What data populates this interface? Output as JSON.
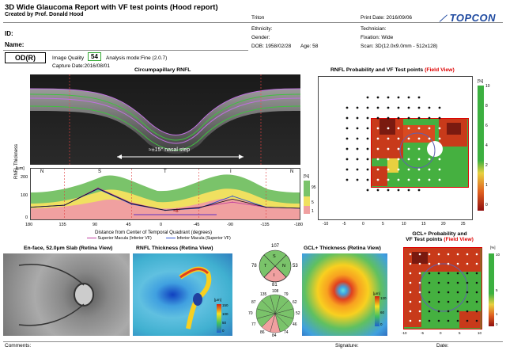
{
  "header": {
    "title": "3D Wide Glaucoma Report with VF test points (Hood report)",
    "created_by": "Created by Prof. Donald Hood",
    "device": "Triton",
    "print_date": "Print Date: 2016/09/06",
    "logo": "TOPCON",
    "id_label": "ID:",
    "name_label": "Name:",
    "ethnicity": "Ethnicity:",
    "gender": "Gender:",
    "dob": "DOB:  1958/02/28",
    "age": "Age: 58",
    "technician": "Technician:",
    "fixation": "Fixation: Wide",
    "scan": "Scan: 3D(12.0x9.0mm - 512x128)",
    "eye": "OD(R)",
    "image_quality_label": "Image Quality",
    "image_quality_value": "54",
    "analysis_mode": "Analysis mode:Fine (2.0.7)",
    "capture_date": "Capture Date:2016/08/01"
  },
  "rnfl_section": {
    "bscan_title": "Circumpapillary RNFL",
    "nasal_step": "≈±15° nasal step",
    "sector_labels": [
      "N",
      "S",
      "T",
      "I",
      "N"
    ],
    "ylabel": "RNFL Thickness",
    "unit": "[μm]",
    "y_ticks": [
      "200",
      "100",
      "0"
    ],
    "x_ticks": [
      "180",
      "135",
      "90",
      "45",
      "0",
      "-45",
      "-90",
      "-135",
      "-180"
    ],
    "arc_label": "≈8°",
    "xlabel": "Distance from Center of Temporal Quadrant (degrees)",
    "legend_sup": "Superior Macula (Inferior VF)",
    "legend_inf": "Inferior Macula (Superior VF)",
    "pct_unit": "[%]",
    "pct_ticks": [
      "95",
      "5",
      "1"
    ]
  },
  "prob_map": {
    "title": "RNFL Probability and VF Test points",
    "view": "(Field View)",
    "unit": "[%]",
    "x_ticks": [
      "-10",
      "-5",
      "0",
      "5",
      "10",
      "15",
      "20",
      "25"
    ],
    "y_ticks": [
      "10",
      "8",
      "6",
      "4",
      "2",
      "1",
      "0"
    ]
  },
  "bottom": {
    "enface_title": "En-face, 52.0μm Slab (Retina View)",
    "thickness_title": "RNFL Thickness (Retina View)",
    "thick_unit": "[μm]",
    "thick_ticks": [
      "150",
      "100",
      "50",
      "0"
    ],
    "sector4": {
      "top": "107",
      "left": "78",
      "right": "53",
      "bottom": "81",
      "s": "S",
      "t": "T",
      "n": "N",
      "i": "I"
    },
    "sector12": [
      "108",
      "79",
      "62",
      "52",
      "46",
      "74",
      "84",
      "86",
      "77",
      "70",
      "87",
      "135"
    ],
    "gcl_title": "GCL+ Thickness (Retina View)",
    "gcl_unit": "[μm]",
    "gcl_ticks": [
      "120",
      "60",
      "0"
    ],
    "gcl_prob_title1": "GCL+ Probability and",
    "gcl_prob_title2": "VF Test points",
    "gcl_prob_view": "(Field View)",
    "gcl_unit2": "[%]",
    "gcl_prob_ticks": [
      "10",
      "5",
      "1",
      "0"
    ],
    "gcl_x_ticks": [
      "-10",
      "-5",
      "0",
      "5",
      "10"
    ]
  },
  "footer": {
    "comments": "Comments:",
    "signature": "Signature:",
    "date": "Date:"
  },
  "chart_data": {
    "type": "line",
    "x": [
      180,
      135,
      90,
      45,
      0,
      -45,
      -90,
      -135,
      -180
    ],
    "series": [
      {
        "name": "Superior Macula (Inferior VF)",
        "values": [
          60,
          70,
          155,
          80,
          45,
          60,
          85,
          60,
          55
        ]
      },
      {
        "name": "Inferior Macula (Superior VF)",
        "values": [
          60,
          70,
          150,
          75,
          45,
          55,
          115,
          60,
          55
        ]
      }
    ],
    "xlabel": "Distance from Center of Temporal Quadrant (degrees)",
    "ylabel": "RNFL Thickness",
    "ylim": [
      0,
      250
    ]
  }
}
